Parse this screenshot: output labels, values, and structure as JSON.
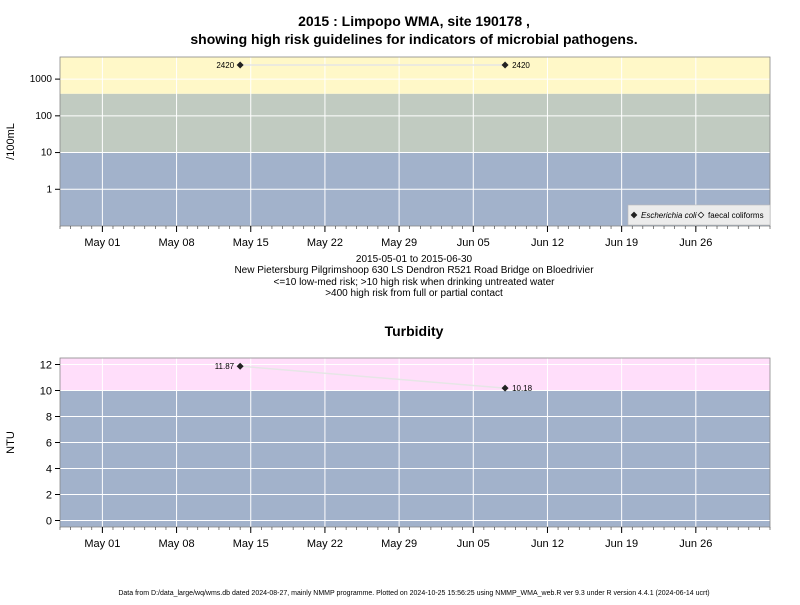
{
  "colors": {
    "high_band_microbial": "#fff8c8",
    "mid_band": "#c1cbc1",
    "low_band": "#a2b2cb",
    "high_band_turbidity": "#ffdefa",
    "grid": "#ffffff",
    "line": "#e6e6e6",
    "point": "#222222",
    "legend_bg": "#ececec"
  },
  "header": {
    "title_line1": "2015 : Limpopo WMA, site 190178 ,",
    "title_line2": "showing high risk guidelines for indicators of microbial pathogens."
  },
  "caption": {
    "date_range": "2015-05-01 to 2015-06-30",
    "site": "New Pietersburg Pilgrimshoop 630 LS Dendron R521 Road Bridge on Bloedrivier",
    "guideline1": "<=10 low-med risk; >10 high risk when drinking untreated water",
    "guideline2": ">400 high risk from full or partial contact"
  },
  "footer": {
    "text": "Data from D:/data_large/wq/wms.db dated 2024-08-27, mainly NMMP programme. Plotted on 2024-10-25 15:56:25 using NMMP_WMA_web.R ver 9.3 under R version 4.4.1 (2024-06-14 ucrt)"
  },
  "chart_data": [
    {
      "type": "line",
      "title": "",
      "ylabel": "/100mL",
      "y_scale": "log",
      "y_ticks": [
        "1",
        "10",
        "100",
        "1000"
      ],
      "y_tick_values": [
        1,
        10,
        100,
        1000
      ],
      "ylim": [
        0.1,
        4000
      ],
      "x_ticks": [
        "May 01",
        "May 08",
        "May 15",
        "May 22",
        "May 29",
        "Jun 05",
        "Jun 12",
        "Jun 19",
        "Jun 26"
      ],
      "x_tick_dates": [
        "2015-05-01",
        "2015-05-08",
        "2015-05-15",
        "2015-05-22",
        "2015-05-29",
        "2015-06-05",
        "2015-06-12",
        "2015-06-19",
        "2015-06-26"
      ],
      "xlim": [
        "2015-04-27",
        "2015-07-03"
      ],
      "bands": [
        {
          "from": 0.1,
          "to": 10,
          "color": "#a2b2cb"
        },
        {
          "from": 10,
          "to": 400,
          "color": "#c1cbc1"
        },
        {
          "from": 400,
          "to": 4000,
          "color": "#fff8c8"
        }
      ],
      "series": [
        {
          "name": "Escherichia coli",
          "marker": "filled-diamond",
          "x": [
            "2015-05-14",
            "2015-06-08"
          ],
          "y": [
            2420,
            2420
          ],
          "labels": [
            "2420",
            "2420"
          ]
        }
      ],
      "legend": {
        "placement": "bottom-right",
        "entries": [
          {
            "label": "Escherichia coli",
            "marker": "filled-diamond",
            "italic": true
          },
          {
            "label": "faecal coliforms",
            "marker": "open-diamond",
            "italic": false
          }
        ]
      },
      "grid": true
    },
    {
      "type": "line",
      "title": "Turbidity",
      "ylabel": "NTU",
      "y_scale": "linear",
      "y_ticks": [
        "0",
        "2",
        "4",
        "6",
        "8",
        "10",
        "12"
      ],
      "y_tick_values": [
        0,
        2,
        4,
        6,
        8,
        10,
        12
      ],
      "ylim": [
        -0.5,
        12.5
      ],
      "x_ticks": [
        "May 01",
        "May 08",
        "May 15",
        "May 22",
        "May 29",
        "Jun 05",
        "Jun 12",
        "Jun 19",
        "Jun 26"
      ],
      "x_tick_dates": [
        "2015-05-01",
        "2015-05-08",
        "2015-05-15",
        "2015-05-22",
        "2015-05-29",
        "2015-06-05",
        "2015-06-12",
        "2015-06-19",
        "2015-06-26"
      ],
      "xlim": [
        "2015-04-27",
        "2015-07-03"
      ],
      "bands": [
        {
          "from": -0.5,
          "to": 10,
          "color": "#a2b2cb"
        },
        {
          "from": 10,
          "to": 12.5,
          "color": "#ffdefa"
        }
      ],
      "series": [
        {
          "marker": "filled-diamond",
          "x": [
            "2015-05-14",
            "2015-06-08"
          ],
          "y": [
            11.87,
            10.18
          ],
          "labels": [
            "11.87",
            "10.18"
          ]
        }
      ],
      "grid": true
    }
  ]
}
